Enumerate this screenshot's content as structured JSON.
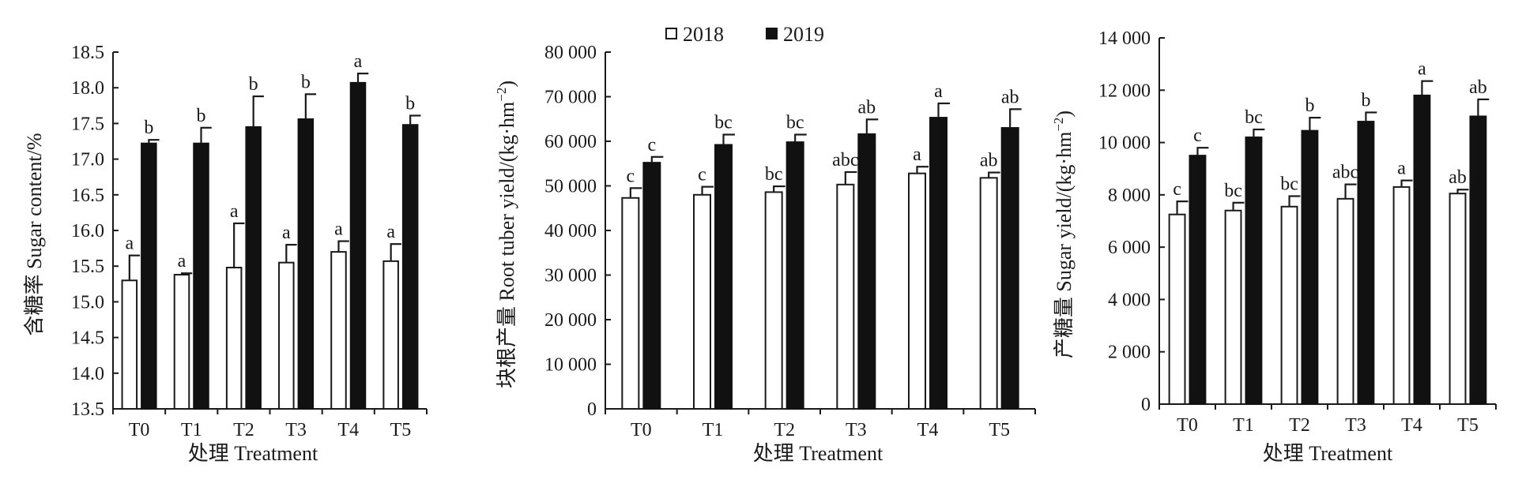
{
  "legend": {
    "series_2018_label": "2018",
    "series_2019_label": "2019",
    "colors": {
      "2018": "#ffffff",
      "2019": "#111111"
    }
  },
  "chart_data": [
    {
      "type": "bar",
      "id": "sugar-content",
      "categories": [
        "T0",
        "T1",
        "T2",
        "T3",
        "T4",
        "T5"
      ],
      "xlabel": "处理 Treatment",
      "ylabel": "含糖率 Sugar content/%",
      "ylim": [
        13.5,
        18.5
      ],
      "yticks": [
        13.5,
        14.0,
        14.5,
        15.0,
        15.5,
        16.0,
        16.5,
        17.0,
        17.5,
        18.0,
        18.5
      ],
      "ytick_labels": [
        "13.5",
        "14.0",
        "14.5",
        "15.0",
        "15.5",
        "16.0",
        "16.5",
        "17.0",
        "17.5",
        "18.0",
        "18.5"
      ],
      "series": [
        {
          "name": "2018",
          "values": [
            15.3,
            15.38,
            15.48,
            15.55,
            15.7,
            15.57
          ],
          "errors": [
            0.35,
            0.02,
            0.62,
            0.25,
            0.15,
            0.24
          ],
          "labels": [
            "a",
            "a",
            "a",
            "a",
            "a",
            "a"
          ]
        },
        {
          "name": "2019",
          "values": [
            17.22,
            17.22,
            17.45,
            17.56,
            18.07,
            17.48
          ],
          "errors": [
            0.05,
            0.22,
            0.43,
            0.35,
            0.13,
            0.13
          ],
          "labels": [
            "b",
            "b",
            "b",
            "b",
            "a",
            "b"
          ]
        }
      ]
    },
    {
      "type": "bar",
      "id": "root-tuber-yield",
      "categories": [
        "T0",
        "T1",
        "T2",
        "T3",
        "T4",
        "T5"
      ],
      "xlabel": "处理 Treatment",
      "ylabel_main": "块根产量 Root tuber yield/(kg·hm",
      "ylabel_sup": "−2",
      "ylabel_end": ")",
      "ylim": [
        0,
        80000
      ],
      "yticks": [
        0,
        10000,
        20000,
        30000,
        40000,
        50000,
        60000,
        70000,
        80000
      ],
      "ytick_labels": [
        "0",
        "10 000",
        "20 000",
        "30 000",
        "40 000",
        "50 000",
        "60 000",
        "70 000",
        "80 000"
      ],
      "series": [
        {
          "name": "2018",
          "values": [
            47300,
            48000,
            48600,
            50300,
            52800,
            51800
          ],
          "errors": [
            2200,
            1800,
            1300,
            2800,
            1500,
            1200
          ],
          "labels": [
            "c",
            "c",
            "bc",
            "abc",
            "a",
            "ab"
          ]
        },
        {
          "name": "2019",
          "values": [
            55200,
            59200,
            59800,
            61600,
            65300,
            63000
          ],
          "errors": [
            1300,
            2300,
            1700,
            3300,
            3200,
            4200
          ],
          "labels": [
            "c",
            "bc",
            "bc",
            "ab",
            "a",
            "ab"
          ]
        }
      ]
    },
    {
      "type": "bar",
      "id": "sugar-yield",
      "categories": [
        "T0",
        "T1",
        "T2",
        "T3",
        "T4",
        "T5"
      ],
      "xlabel": "处理 Treatment",
      "ylabel_main": "产糖量 Sugar yield/(kg·hm",
      "ylabel_sup": "−2",
      "ylabel_end": ")",
      "ylim": [
        0,
        14000
      ],
      "yticks": [
        0,
        2000,
        4000,
        6000,
        8000,
        10000,
        12000,
        14000
      ],
      "ytick_labels": [
        "0",
        "2 000",
        "4 000",
        "6 000",
        "8 000",
        "10 000",
        "12 000",
        "14 000"
      ],
      "series": [
        {
          "name": "2018",
          "values": [
            7250,
            7400,
            7550,
            7850,
            8300,
            8050
          ],
          "errors": [
            500,
            300,
            400,
            550,
            250,
            150
          ],
          "labels": [
            "c",
            "bc",
            "bc",
            "abc",
            "a",
            "ab"
          ]
        },
        {
          "name": "2019",
          "values": [
            9500,
            10200,
            10450,
            10800,
            11800,
            11000
          ],
          "errors": [
            300,
            300,
            500,
            350,
            550,
            650
          ],
          "labels": [
            "c",
            "bc",
            "b",
            "b",
            "a",
            "ab"
          ]
        }
      ]
    }
  ]
}
